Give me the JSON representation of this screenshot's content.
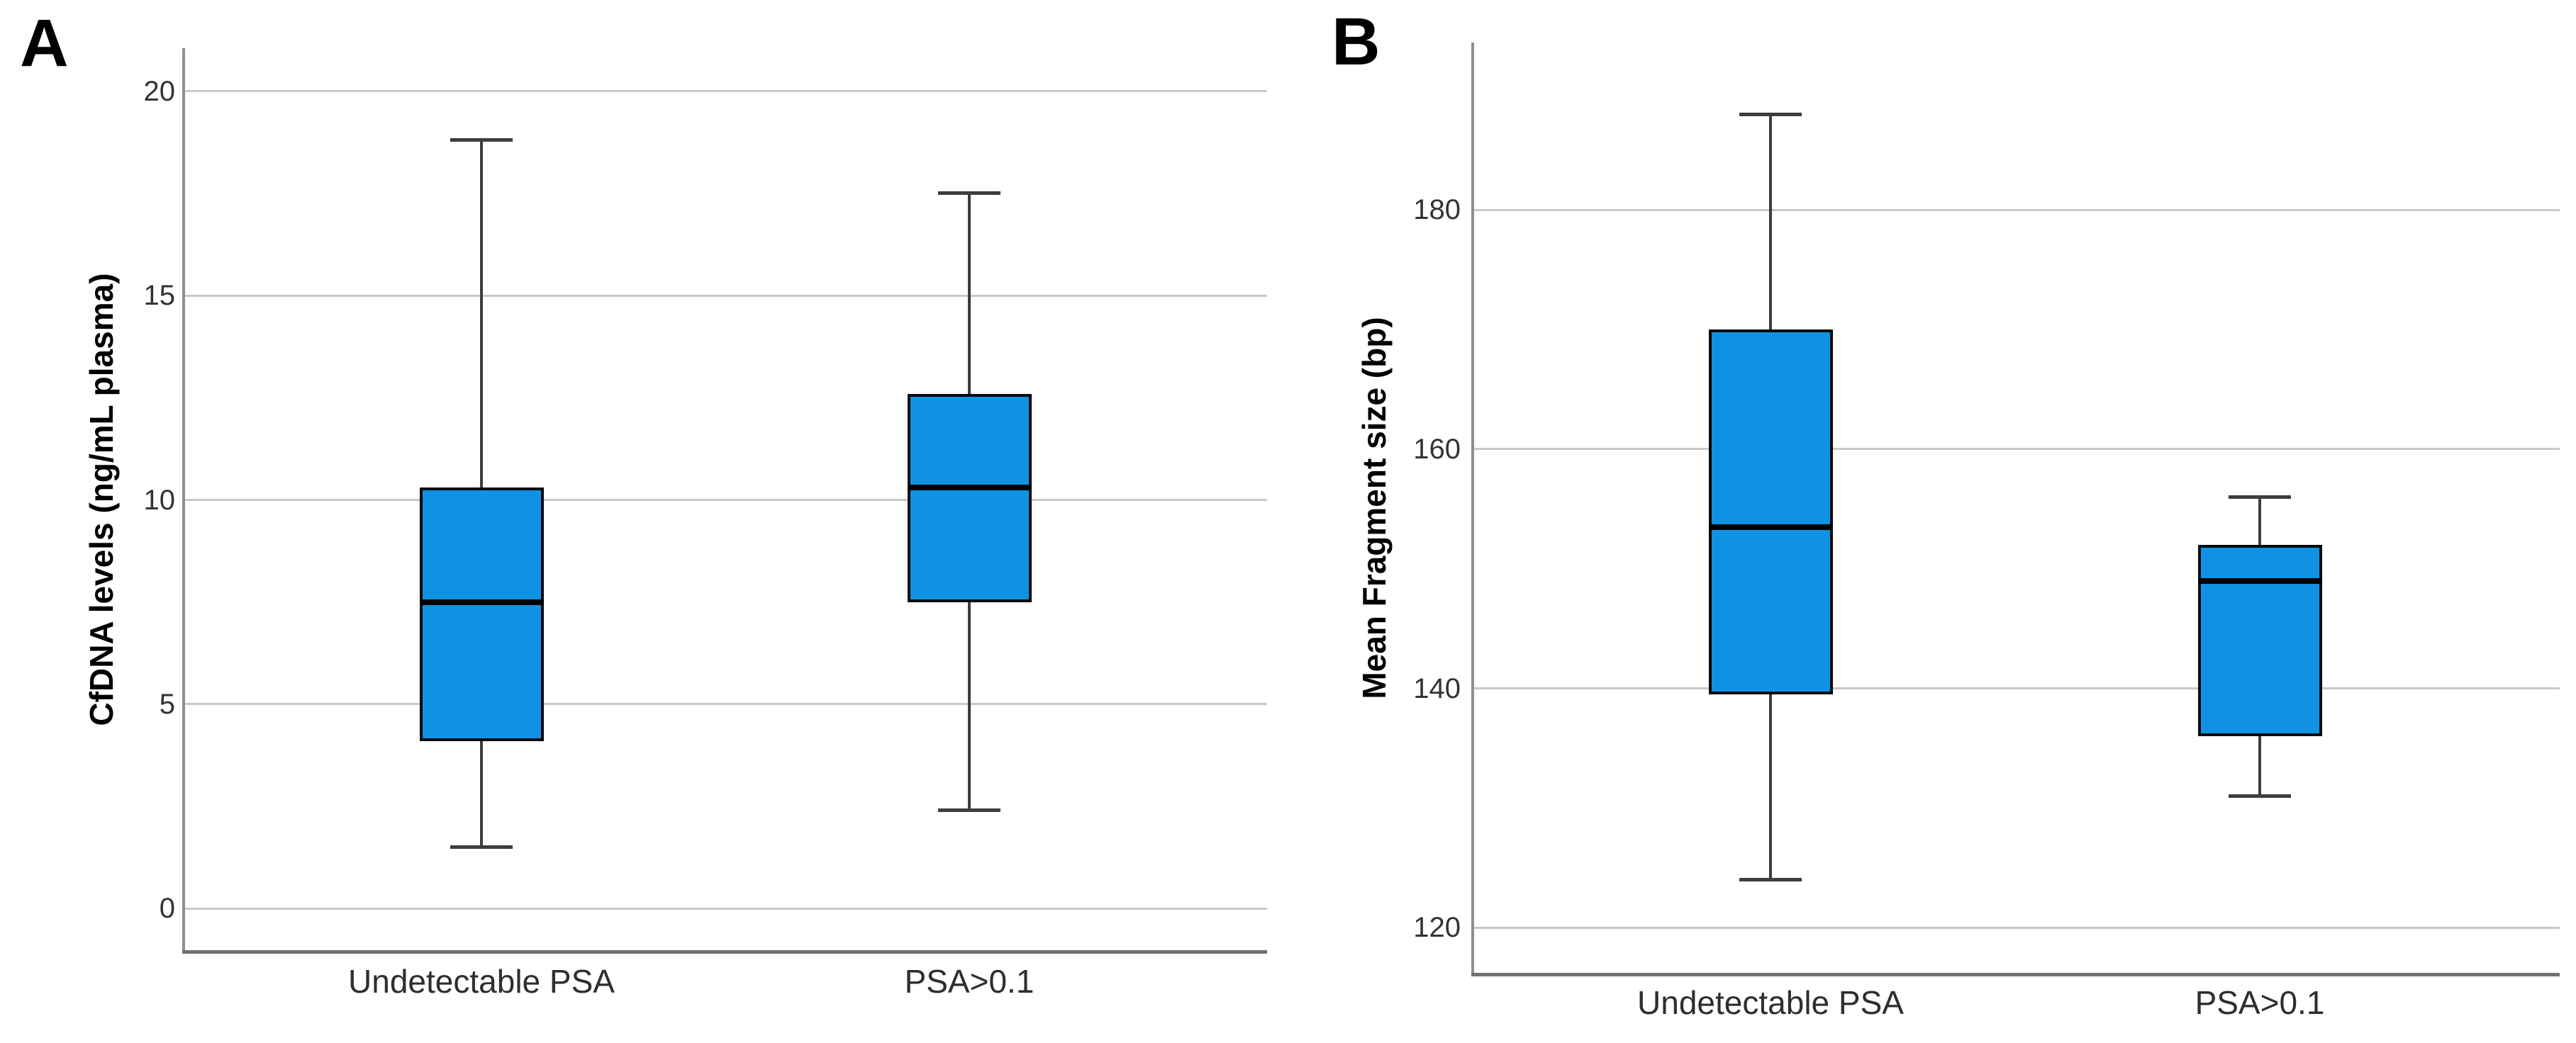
{
  "chart_data": [
    {
      "type": "box",
      "panel_label": "A",
      "ylabel": "CfDNA levels (ng/mL plasma)",
      "categories": [
        "Undetectable PSA",
        "PSA>0.1"
      ],
      "yticks": [
        20,
        15,
        10,
        5,
        0
      ],
      "ylim": [
        -1.05,
        21.05
      ],
      "grid": true,
      "legend": "none",
      "series": [
        {
          "name": "Undetectable PSA",
          "min": 1.5,
          "q1": 4.1,
          "median": 7.5,
          "q3": 10.3,
          "max": 18.8
        },
        {
          "name": "PSA>0.1",
          "min": 2.4,
          "q1": 7.5,
          "median": 10.3,
          "q3": 12.6,
          "max": 17.5
        }
      ]
    },
    {
      "type": "box",
      "panel_label": "B",
      "ylabel": "Mean Fragment size (bp)",
      "categories": [
        "Undetectable PSA",
        "PSA>0.1"
      ],
      "yticks": [
        180,
        160,
        140,
        120
      ],
      "ylim": [
        116.1,
        194.0
      ],
      "grid": true,
      "legend": "none",
      "series": [
        {
          "name": "Undetectable PSA",
          "min": 124,
          "q1": 139.5,
          "median": 153.5,
          "q3": 170,
          "max": 188
        },
        {
          "name": "PSA>0.1",
          "min": 131,
          "q1": 136,
          "median": 149,
          "q3": 152,
          "max": 156
        }
      ]
    }
  ],
  "colors": {
    "box_fill": "#0f92e4",
    "box_border": "#0a0a0a",
    "median": "#000000",
    "whisker": "#3d3d3d",
    "gridline": "#c8c8c8",
    "axis_y": "#8f8f8f",
    "axis_x": "#707070",
    "tick_text": "#333333",
    "category_text": "#2e2e2e",
    "background": "#ffffff"
  }
}
